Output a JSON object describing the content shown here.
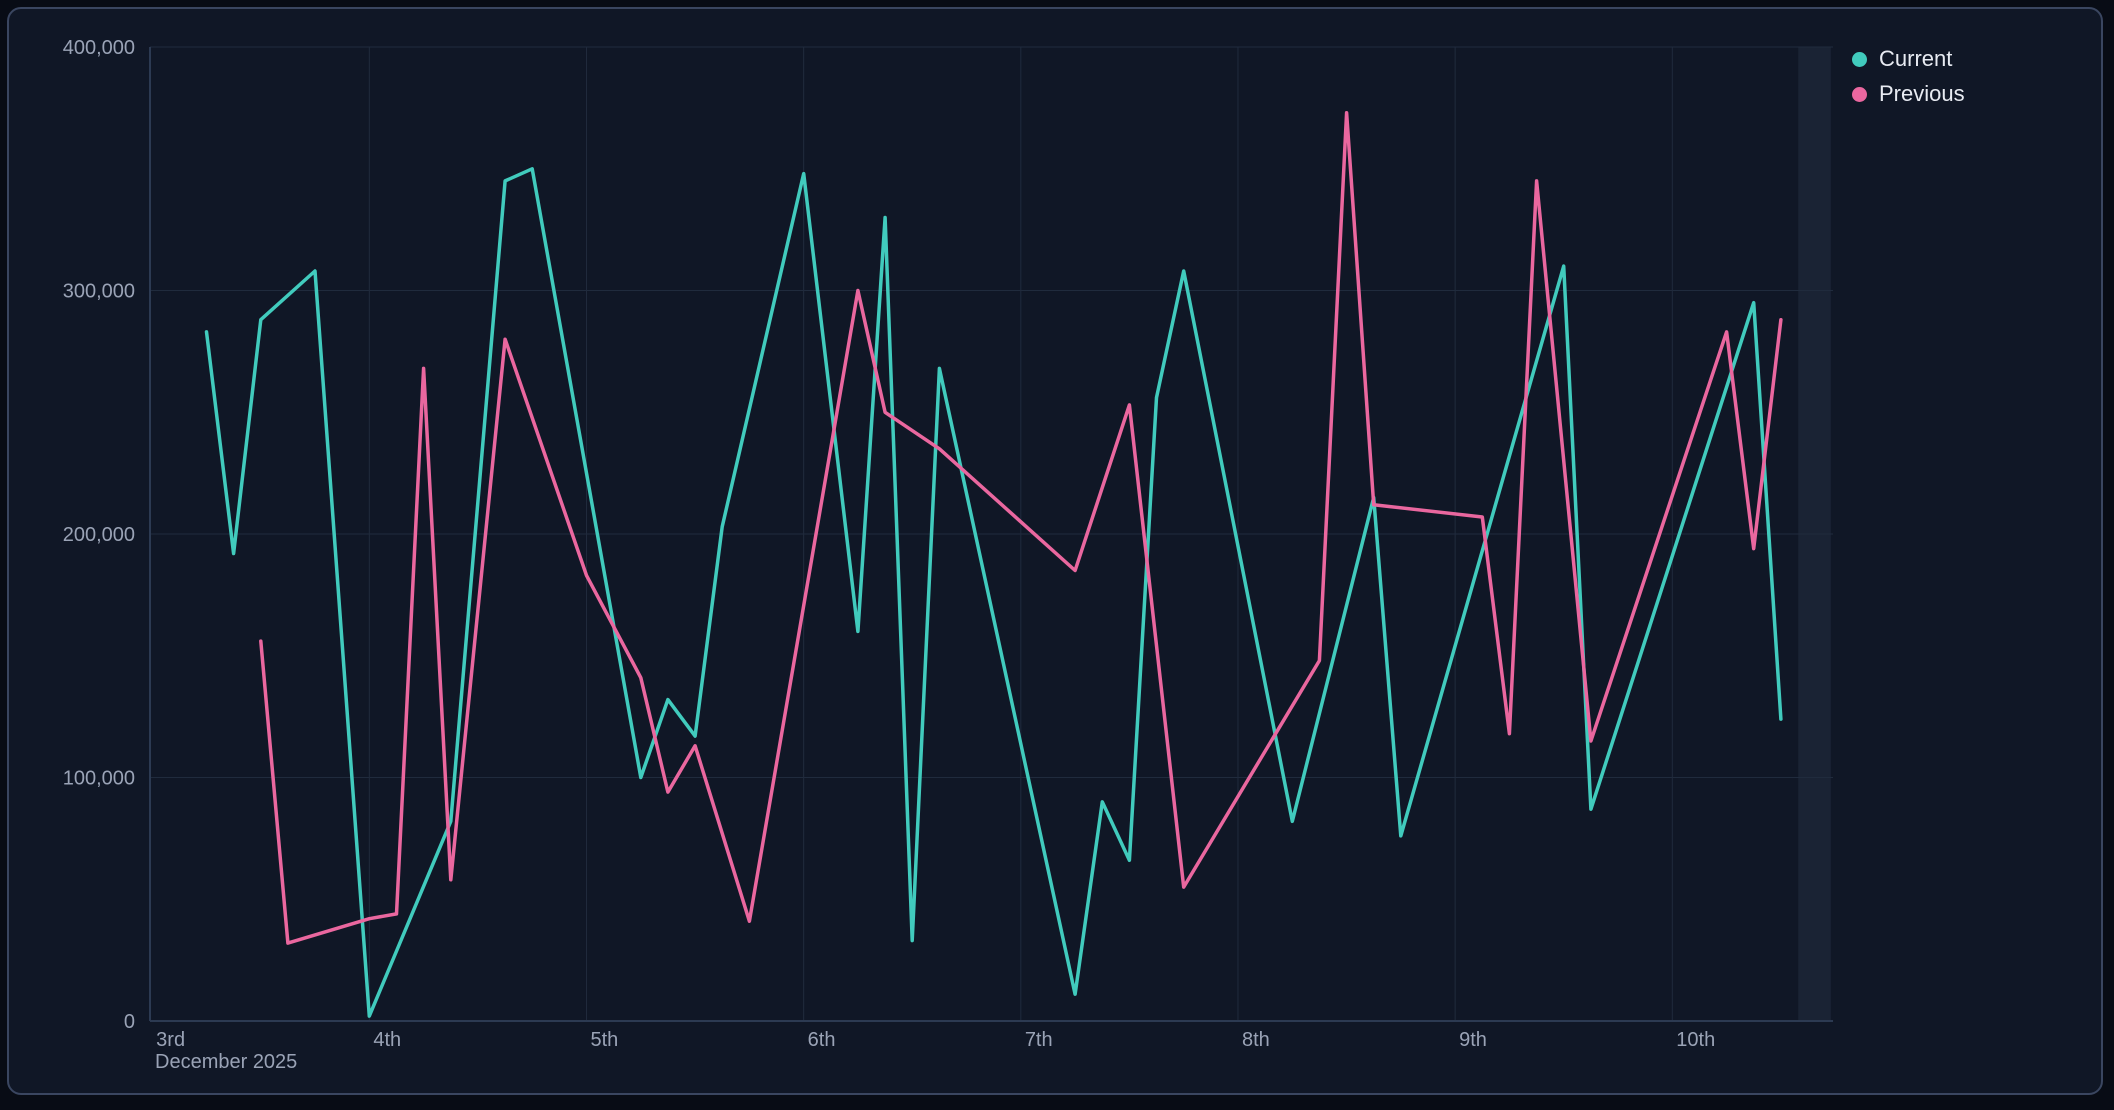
{
  "legend": {
    "items": [
      {
        "label": "Current",
        "color": "#41cbbd"
      },
      {
        "label": "Previous",
        "color": "#ea679f"
      }
    ]
  },
  "chart_data": {
    "type": "line",
    "title": "",
    "xlabel": "",
    "ylabel": "",
    "grid": true,
    "legend_position": "top-right",
    "x_axis": {
      "month_label": "December 2025",
      "range": [
        2.99,
        10.74
      ],
      "ticks": [
        {
          "pos": 3,
          "label": "3rd"
        },
        {
          "pos": 4,
          "label": "4th"
        },
        {
          "pos": 5,
          "label": "5th"
        },
        {
          "pos": 6,
          "label": "6th"
        },
        {
          "pos": 7,
          "label": "7th"
        },
        {
          "pos": 8,
          "label": "8th"
        },
        {
          "pos": 9,
          "label": "9th"
        },
        {
          "pos": 10,
          "label": "10th"
        }
      ]
    },
    "y_axis": {
      "range": [
        0,
        400000
      ],
      "ticks": [
        {
          "value": 0,
          "label": "0"
        },
        {
          "value": 100000,
          "label": "100,000"
        },
        {
          "value": 200000,
          "label": "200,000"
        },
        {
          "value": 300000,
          "label": "300,000"
        },
        {
          "value": 400000,
          "label": "400,000"
        }
      ]
    },
    "partial_band": {
      "from": 10.58,
      "to": 10.73,
      "color": "rgba(150,173,218,0.08)"
    },
    "series": [
      {
        "name": "Current",
        "color": "#41cbbd",
        "points": [
          [
            3.25,
            283000
          ],
          [
            3.375,
            192000
          ],
          [
            3.5,
            288000
          ],
          [
            3.75,
            308000
          ],
          [
            4.0,
            2000
          ],
          [
            4.375,
            82000
          ],
          [
            4.625,
            345000
          ],
          [
            4.75,
            350000
          ],
          [
            5.25,
            100000
          ],
          [
            5.375,
            132000
          ],
          [
            5.5,
            117000
          ],
          [
            5.625,
            203000
          ],
          [
            6.0,
            348000
          ],
          [
            6.25,
            160000
          ],
          [
            6.375,
            330000
          ],
          [
            6.5,
            33000
          ],
          [
            6.625,
            268000
          ],
          [
            7.25,
            11000
          ],
          [
            7.375,
            90000
          ],
          [
            7.5,
            66000
          ],
          [
            7.625,
            256000
          ],
          [
            7.75,
            308000
          ],
          [
            8.25,
            82000
          ],
          [
            8.625,
            215000
          ],
          [
            8.75,
            76000
          ],
          [
            9.5,
            310000
          ],
          [
            9.625,
            87000
          ],
          [
            10.375,
            295000
          ],
          [
            10.5,
            124000
          ]
        ]
      },
      {
        "name": "Previous",
        "color": "#ea679f",
        "points": [
          [
            3.5,
            156000
          ],
          [
            3.625,
            32000
          ],
          [
            4.0,
            42000
          ],
          [
            4.125,
            44000
          ],
          [
            4.25,
            268000
          ],
          [
            4.375,
            58000
          ],
          [
            4.625,
            280000
          ],
          [
            5.0,
            183000
          ],
          [
            5.25,
            141000
          ],
          [
            5.375,
            94000
          ],
          [
            5.5,
            113000
          ],
          [
            5.75,
            41000
          ],
          [
            6.25,
            300000
          ],
          [
            6.375,
            250000
          ],
          [
            6.625,
            235000
          ],
          [
            7.25,
            185000
          ],
          [
            7.5,
            253000
          ],
          [
            7.75,
            55000
          ],
          [
            8.375,
            148000
          ],
          [
            8.5,
            373000
          ],
          [
            8.625,
            212000
          ],
          [
            9.125,
            207000
          ],
          [
            9.25,
            118000
          ],
          [
            9.375,
            345000
          ],
          [
            9.625,
            115000
          ],
          [
            10.25,
            283000
          ],
          [
            10.375,
            194000
          ],
          [
            10.5,
            288000
          ]
        ]
      }
    ]
  }
}
